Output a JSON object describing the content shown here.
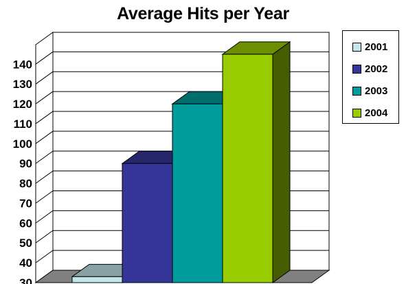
{
  "chart_data": {
    "type": "bar",
    "title": "Average Hits per Year",
    "xlabel": "",
    "ylabel": "",
    "ylim": [
      30,
      146
    ],
    "yticks": [
      30,
      40,
      50,
      60,
      70,
      80,
      90,
      100,
      110,
      120,
      130,
      140
    ],
    "grid": true,
    "legend_position": "right",
    "three_d": true,
    "series": [
      {
        "name": "2001",
        "values": [
          33
        ],
        "color": "#c4e5ea"
      },
      {
        "name": "2002",
        "values": [
          90
        ],
        "color": "#36369a"
      },
      {
        "name": "2003",
        "values": [
          120
        ],
        "color": "#009c9c"
      },
      {
        "name": "2004",
        "values": [
          145
        ],
        "color": "#99cc00"
      }
    ]
  }
}
